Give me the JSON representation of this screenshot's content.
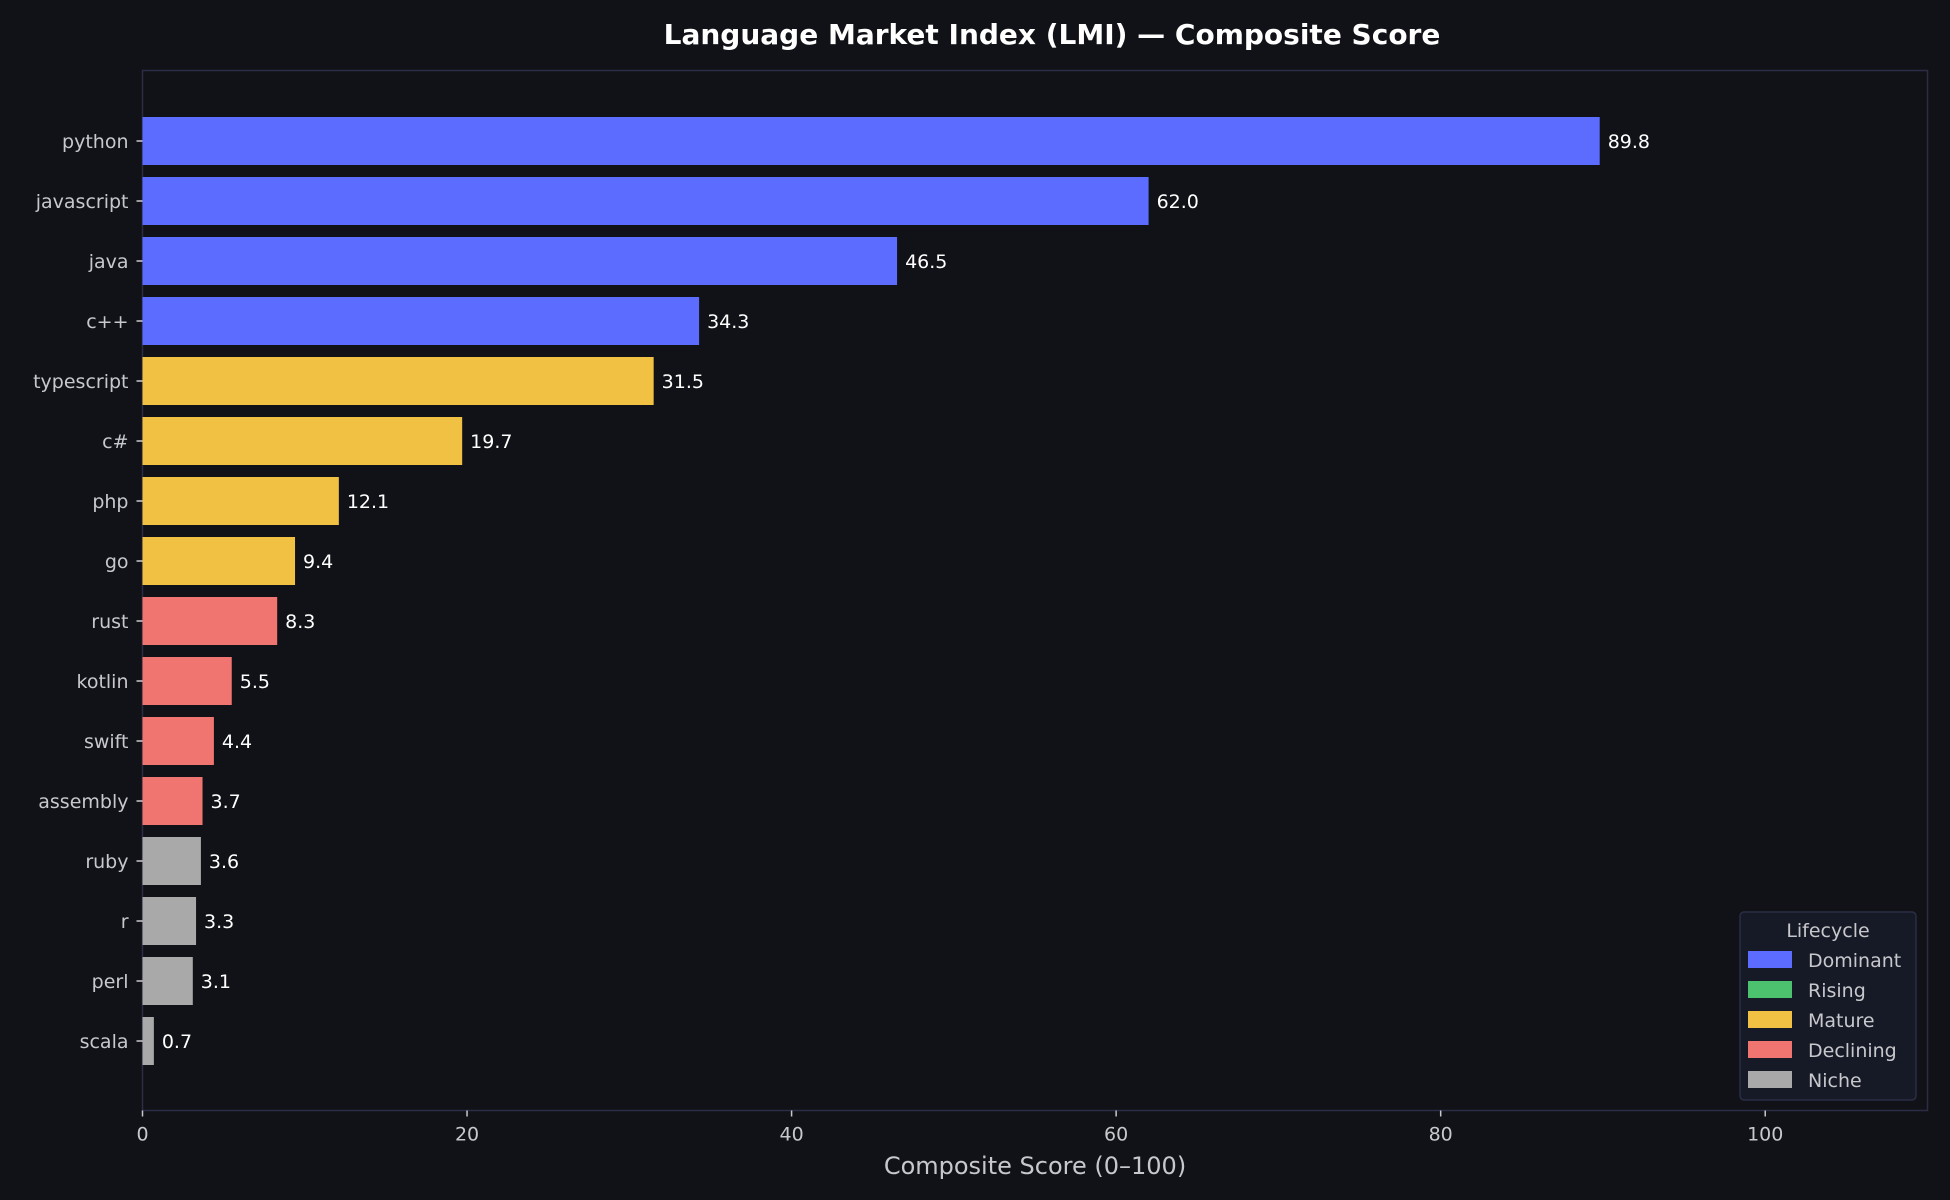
{
  "chart_data": {
    "type": "bar",
    "orientation": "horizontal",
    "title": "Language Market Index (LMI) — Composite Score",
    "xlabel": "Composite Score (0–100)",
    "ylabel": "",
    "xlim": [
      0,
      110
    ],
    "xticks": [
      0,
      20,
      40,
      60,
      80,
      100
    ],
    "grid": false,
    "legend_position": "bottom-right",
    "legend_title": "Lifecycle",
    "legend": [
      {
        "name": "Dominant",
        "color": "#5b6cff"
      },
      {
        "name": "Rising",
        "color": "#4cc26e"
      },
      {
        "name": "Mature",
        "color": "#f0c143"
      },
      {
        "name": "Declining",
        "color": "#f07470"
      },
      {
        "name": "Niche",
        "color": "#a9a9a9"
      }
    ],
    "bars": [
      {
        "category": "python",
        "value": 89.8,
        "value_label": "89.8",
        "lifecycle": "Dominant"
      },
      {
        "category": "javascript",
        "value": 62.0,
        "value_label": "62.0",
        "lifecycle": "Dominant"
      },
      {
        "category": "java",
        "value": 46.5,
        "value_label": "46.5",
        "lifecycle": "Dominant"
      },
      {
        "category": "c++",
        "value": 34.3,
        "value_label": "34.3",
        "lifecycle": "Dominant"
      },
      {
        "category": "typescript",
        "value": 31.5,
        "value_label": "31.5",
        "lifecycle": "Mature"
      },
      {
        "category": "c#",
        "value": 19.7,
        "value_label": "19.7",
        "lifecycle": "Mature"
      },
      {
        "category": "php",
        "value": 12.1,
        "value_label": "12.1",
        "lifecycle": "Mature"
      },
      {
        "category": "go",
        "value": 9.4,
        "value_label": "9.4",
        "lifecycle": "Mature"
      },
      {
        "category": "rust",
        "value": 8.3,
        "value_label": "8.3",
        "lifecycle": "Declining"
      },
      {
        "category": "kotlin",
        "value": 5.5,
        "value_label": "5.5",
        "lifecycle": "Declining"
      },
      {
        "category": "swift",
        "value": 4.4,
        "value_label": "4.4",
        "lifecycle": "Declining"
      },
      {
        "category": "assembly",
        "value": 3.7,
        "value_label": "3.7",
        "lifecycle": "Declining"
      },
      {
        "category": "ruby",
        "value": 3.6,
        "value_label": "3.6",
        "lifecycle": "Niche"
      },
      {
        "category": "r",
        "value": 3.3,
        "value_label": "3.3",
        "lifecycle": "Niche"
      },
      {
        "category": "perl",
        "value": 3.1,
        "value_label": "3.1",
        "lifecycle": "Niche"
      },
      {
        "category": "scala",
        "value": 0.7,
        "value_label": "0.7",
        "lifecycle": "Niche"
      }
    ]
  },
  "colors": {
    "background": "#111217",
    "axes_frame": "#2a2d45",
    "text": "#c8c8cc",
    "legend_background": "#161a26"
  }
}
